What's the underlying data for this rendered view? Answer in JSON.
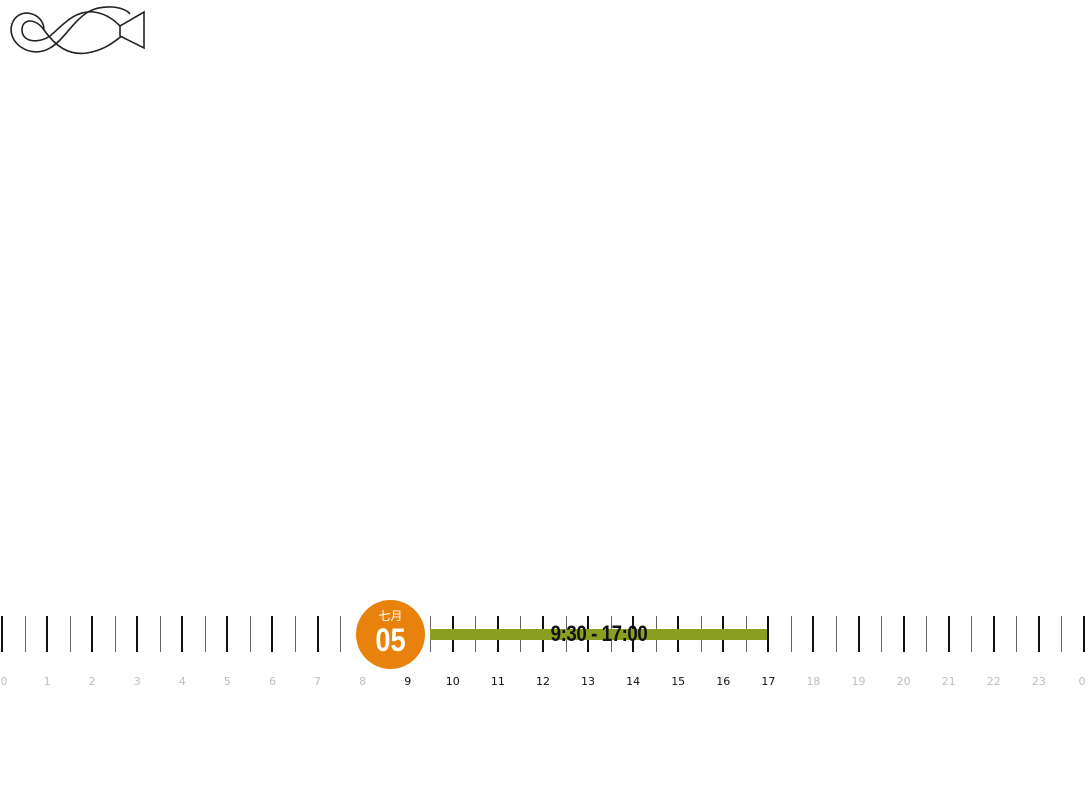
{
  "logo": {
    "icon": "infinity-arrow-logo"
  },
  "timeline": {
    "hour_labels": [
      "0",
      "1",
      "2",
      "3",
      "4",
      "5",
      "6",
      "7",
      "8",
      "9",
      "10",
      "11",
      "12",
      "13",
      "14",
      "15",
      "16",
      "17",
      "18",
      "19",
      "20",
      "21",
      "22",
      "23",
      "0"
    ],
    "active_range": {
      "start_hour": 9,
      "end_hour": 17
    },
    "range_text": "9:30 - 17:00",
    "range_color": "#8a9f1f",
    "date_badge": {
      "month": "七月",
      "day": "05",
      "color": "#e8820c"
    },
    "active_label_color": "#111111",
    "inactive_label_color": "#bdbdbd"
  }
}
